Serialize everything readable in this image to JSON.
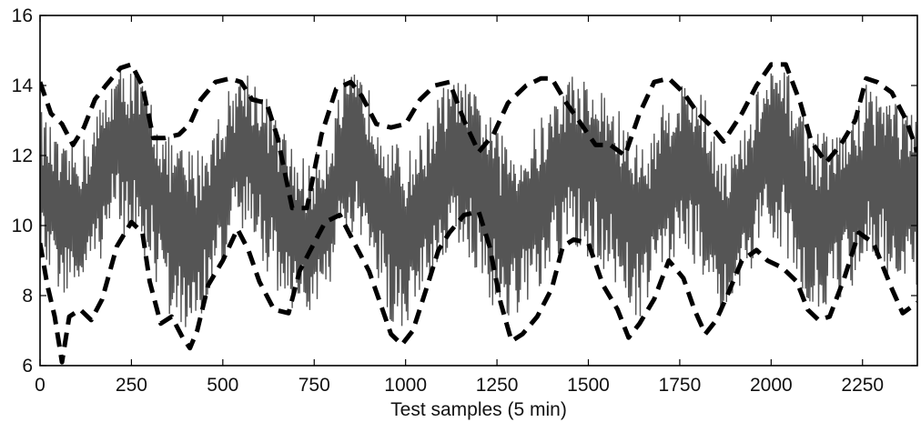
{
  "chart_data": {
    "type": "line",
    "title": "",
    "xlabel": "Test samples (5 min)",
    "ylabel": "",
    "xlim": [
      0,
      2400
    ],
    "ylim": [
      6,
      16
    ],
    "x_ticks": [
      0,
      250,
      500,
      750,
      1000,
      1250,
      1500,
      1750,
      2000,
      2250
    ],
    "y_ticks": [
      6,
      8,
      10,
      12,
      14,
      16
    ],
    "grid": false,
    "legend": "none",
    "colors": {
      "signal": "#555555",
      "bounds": "#000000",
      "axes": "#000000"
    },
    "series": [
      {
        "style": "solid-oscillating",
        "x": [
          0,
          60,
          130,
          200,
          250,
          300,
          340,
          380,
          420,
          470,
          520,
          560,
          600,
          650,
          700,
          740,
          790,
          830,
          870,
          920,
          960,
          1000,
          1050,
          1100,
          1150,
          1210,
          1260,
          1330,
          1390,
          1450,
          1500,
          1560,
          1620,
          1660,
          1700,
          1750,
          1800,
          1840,
          1880,
          1930,
          1970,
          2020,
          2060,
          2110,
          2160,
          2220,
          2260,
          2320,
          2400
        ],
        "y": [
          11.2,
          10.0,
          10.4,
          12.4,
          12.3,
          11.6,
          10.5,
          9.8,
          9.4,
          10.5,
          11.8,
          12.4,
          11.8,
          10.8,
          9.7,
          9.5,
          10.5,
          11.9,
          12.3,
          11.2,
          10.2,
          9.8,
          10.6,
          11.6,
          12.4,
          11.3,
          10.1,
          10.2,
          11.0,
          12.2,
          11.8,
          11.2,
          10.1,
          10.2,
          11.4,
          11.8,
          11.5,
          10.4,
          9.8,
          10.8,
          11.8,
          12.3,
          11.6,
          10.2,
          10.3,
          10.8,
          11.6,
          11.2,
          10.6
        ],
        "envelope_low": [
          9.0,
          8.0,
          8.2,
          9.8,
          9.5,
          8.8,
          7.6,
          6.8,
          7.0,
          8.0,
          9.4,
          9.6,
          9.2,
          8.0,
          7.5,
          7.4,
          8.2,
          9.5,
          9.4,
          8.3,
          7.2,
          7.0,
          8.2,
          9.0,
          9.4,
          8.2,
          7.2,
          7.4,
          8.4,
          9.3,
          9.0,
          8.5,
          7.4,
          7.4,
          8.6,
          9.2,
          8.8,
          8.0,
          7.2,
          8.0,
          9.3,
          9.5,
          8.8,
          7.6,
          7.6,
          8.2,
          9.2,
          8.6,
          8.2
        ],
        "envelope_high": [
          13.4,
          12.2,
          12.6,
          14.4,
          14.7,
          13.8,
          12.6,
          12.4,
          12.2,
          12.8,
          14.0,
          14.6,
          14.2,
          13.0,
          12.2,
          11.8,
          12.8,
          14.2,
          14.4,
          13.6,
          12.6,
          12.0,
          12.8,
          14.0,
          14.2,
          13.6,
          12.6,
          12.5,
          13.4,
          14.4,
          14.2,
          13.8,
          12.6,
          12.2,
          13.4,
          14.2,
          14.2,
          13.0,
          12.0,
          12.8,
          14.2,
          14.6,
          14.2,
          12.8,
          12.6,
          13.0,
          14.2,
          14.0,
          13.0
        ]
      },
      {
        "style": "dashed-upper-bound",
        "x": [
          0,
          30,
          60,
          90,
          120,
          150,
          180,
          220,
          250,
          280,
          310,
          340,
          380,
          410,
          440,
          480,
          520,
          550,
          580,
          620,
          650,
          690,
          730,
          770,
          810,
          850,
          880,
          920,
          960,
          1000,
          1040,
          1080,
          1120,
          1160,
          1200,
          1240,
          1280,
          1330,
          1370,
          1400,
          1440,
          1480,
          1520,
          1560,
          1600,
          1640,
          1680,
          1720,
          1760,
          1800,
          1830,
          1870,
          1920,
          1960,
          2000,
          2040,
          2080,
          2110,
          2150,
          2190,
          2230,
          2260,
          2290,
          2330,
          2370,
          2400
        ],
        "y": [
          14.1,
          13.2,
          12.9,
          12.3,
          12.8,
          13.6,
          14.0,
          14.5,
          14.6,
          14.0,
          12.5,
          12.5,
          12.6,
          12.9,
          13.6,
          14.1,
          14.2,
          14.1,
          13.6,
          13.5,
          12.5,
          10.5,
          10.5,
          12.6,
          13.9,
          14.1,
          13.7,
          12.9,
          12.8,
          12.9,
          13.6,
          14.0,
          14.1,
          13.0,
          12.1,
          12.6,
          13.5,
          14.0,
          14.2,
          14.2,
          13.5,
          12.9,
          12.3,
          12.3,
          12.0,
          13.2,
          14.1,
          14.2,
          13.8,
          13.2,
          12.9,
          12.4,
          13.2,
          14.0,
          14.6,
          14.6,
          13.5,
          12.4,
          11.8,
          12.3,
          13.0,
          14.2,
          14.1,
          13.8,
          13.0,
          12.1
        ]
      },
      {
        "style": "dashed-lower-bound",
        "x": [
          0,
          20,
          40,
          60,
          80,
          110,
          140,
          170,
          210,
          250,
          280,
          300,
          330,
          360,
          390,
          410,
          430,
          460,
          500,
          540,
          570,
          600,
          640,
          680,
          710,
          740,
          780,
          820,
          860,
          900,
          930,
          960,
          990,
          1020,
          1060,
          1090,
          1120,
          1160,
          1200,
          1230,
          1260,
          1290,
          1320,
          1360,
          1400,
          1430,
          1460,
          1500,
          1540,
          1580,
          1610,
          1640,
          1680,
          1720,
          1760,
          1790,
          1820,
          1850,
          1880,
          1920,
          1960,
          1990,
          2030,
          2070,
          2100,
          2130,
          2160,
          2200,
          2240,
          2280,
          2330,
          2360,
          2400
        ],
        "y": [
          9.5,
          8.3,
          7.4,
          6.1,
          7.4,
          7.6,
          7.3,
          7.9,
          9.4,
          10.1,
          9.8,
          8.4,
          7.2,
          7.4,
          6.8,
          6.5,
          7.0,
          8.3,
          9.0,
          9.9,
          9.3,
          8.4,
          7.6,
          7.5,
          8.7,
          9.3,
          10.1,
          10.3,
          9.5,
          8.7,
          7.8,
          6.9,
          6.6,
          7.0,
          8.3,
          9.3,
          9.8,
          10.3,
          10.4,
          9.4,
          7.8,
          6.7,
          6.9,
          7.4,
          8.2,
          9.4,
          9.6,
          9.5,
          8.3,
          7.6,
          6.8,
          7.2,
          7.9,
          9.0,
          8.5,
          7.6,
          6.9,
          7.3,
          8.0,
          9.0,
          9.3,
          9.0,
          8.8,
          8.4,
          7.6,
          7.3,
          7.4,
          8.5,
          9.8,
          9.5,
          8.2,
          7.5,
          7.8
        ]
      }
    ]
  }
}
